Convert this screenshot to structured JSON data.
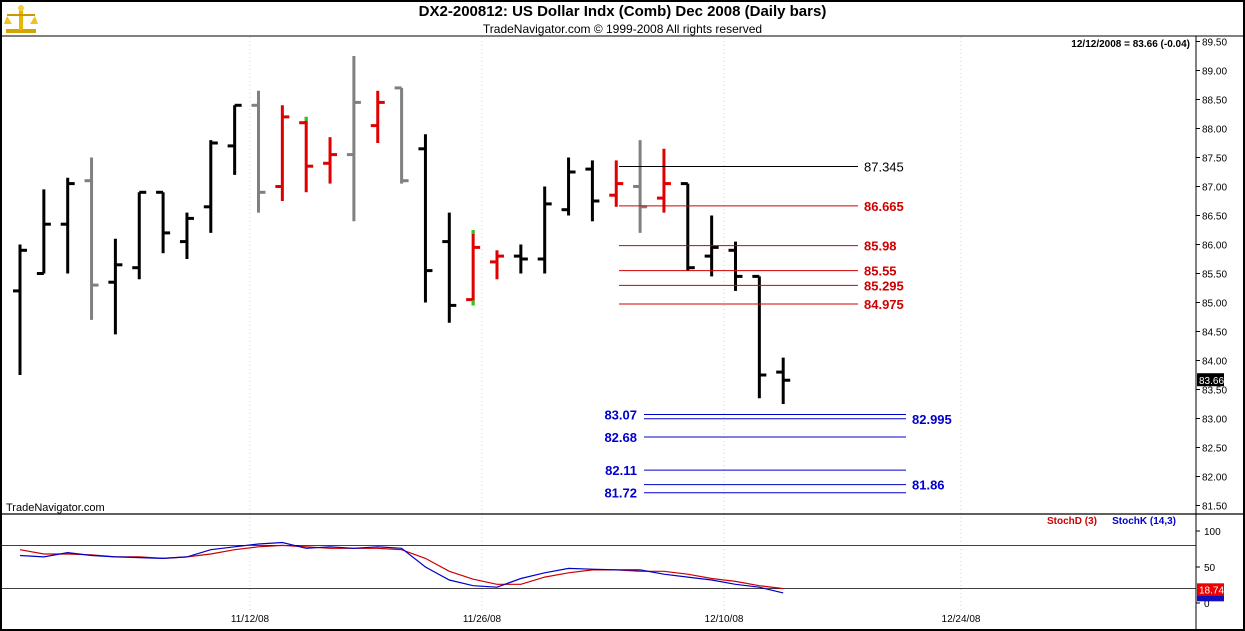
{
  "header": {
    "title": "DX2-200812:  US Dollar Indx (Comb) Dec 2008  (Daily bars)",
    "copyright": "TradeNavigator.com © 1999-2008 All rights reserved",
    "last_quote": "12/12/2008 = 83.66 (-0.04)",
    "watermark": "TradeNavigator.com",
    "last_price_tag": "83.66",
    "logo_icon": "scales-icon"
  },
  "colors": {
    "up_bar": "#e00000",
    "down_bar": "#000000",
    "neutral_bar": "#808080",
    "resistance_line": "#d00000",
    "support_line": "#0000cc",
    "stoch_d": "#cc0000",
    "stoch_k": "#0000cc",
    "highlight_tick": "#22cc22"
  },
  "chart_data": [
    {
      "type": "ohlc",
      "title": "DX2-200812:  US Dollar Indx (Comb) Dec 2008  (Daily bars)",
      "ylim": [
        81.3,
        89.6
      ],
      "yticks": [
        "89.50",
        "89.00",
        "88.50",
        "88.00",
        "87.50",
        "87.00",
        "86.50",
        "86.00",
        "85.50",
        "85.00",
        "84.50",
        "84.00",
        "83.50",
        "83.00",
        "82.50",
        "82.00",
        "81.50"
      ],
      "xticks": [
        "11/12/08",
        "11/26/08",
        "12/10/08",
        "12/24/08"
      ],
      "bars": [
        {
          "h": 86.0,
          "l": 83.75,
          "o": 85.2,
          "c": 85.9,
          "col": "black"
        },
        {
          "h": 86.95,
          "l": 85.5,
          "o": 85.5,
          "c": 86.35,
          "col": "black"
        },
        {
          "h": 87.15,
          "l": 85.5,
          "o": 86.35,
          "c": 87.05,
          "col": "black"
        },
        {
          "h": 87.5,
          "l": 84.7,
          "o": 87.1,
          "c": 85.3,
          "col": "gray"
        },
        {
          "h": 86.1,
          "l": 84.45,
          "o": 85.35,
          "c": 85.65,
          "col": "black"
        },
        {
          "h": 86.9,
          "l": 85.4,
          "o": 85.6,
          "c": 86.9,
          "col": "black"
        },
        {
          "h": 86.9,
          "l": 85.85,
          "o": 86.9,
          "c": 86.2,
          "col": "black"
        },
        {
          "h": 86.55,
          "l": 85.75,
          "o": 86.05,
          "c": 86.45,
          "col": "black"
        },
        {
          "h": 87.8,
          "l": 86.2,
          "o": 86.65,
          "c": 87.75,
          "col": "black"
        },
        {
          "h": 88.4,
          "l": 87.2,
          "o": 87.7,
          "c": 88.4,
          "col": "black"
        },
        {
          "h": 88.65,
          "l": 86.55,
          "o": 88.4,
          "c": 86.9,
          "col": "gray"
        },
        {
          "h": 88.4,
          "l": 86.75,
          "o": 87.0,
          "c": 88.2,
          "col": "red"
        },
        {
          "h": 88.2,
          "l": 86.9,
          "o": 88.1,
          "c": 87.35,
          "col": "red",
          "mark_high": true
        },
        {
          "h": 87.85,
          "l": 87.05,
          "o": 87.4,
          "c": 87.55,
          "col": "red"
        },
        {
          "h": 89.25,
          "l": 86.4,
          "o": 87.55,
          "c": 88.45,
          "col": "gray"
        },
        {
          "h": 88.65,
          "l": 87.75,
          "o": 88.05,
          "c": 88.45,
          "col": "red"
        },
        {
          "h": 88.7,
          "l": 87.05,
          "o": 88.7,
          "c": 87.1,
          "col": "gray"
        },
        {
          "h": 87.9,
          "l": 85.0,
          "o": 87.65,
          "c": 85.55,
          "col": "black"
        },
        {
          "h": 86.55,
          "l": 84.65,
          "o": 86.05,
          "c": 84.95,
          "col": "black"
        },
        {
          "h": 86.25,
          "l": 84.95,
          "o": 85.05,
          "c": 85.95,
          "col": "red",
          "mark_low": true,
          "mark_high": true
        },
        {
          "h": 85.9,
          "l": 85.4,
          "o": 85.7,
          "c": 85.8,
          "col": "red"
        },
        {
          "h": 86.0,
          "l": 85.5,
          "o": 85.8,
          "c": 85.75,
          "col": "black"
        },
        {
          "h": 87.0,
          "l": 85.5,
          "o": 85.75,
          "c": 86.7,
          "col": "black"
        },
        {
          "h": 87.5,
          "l": 86.5,
          "o": 86.6,
          "c": 87.25,
          "col": "black"
        },
        {
          "h": 87.45,
          "l": 86.4,
          "o": 87.3,
          "c": 86.75,
          "col": "black"
        },
        {
          "h": 87.45,
          "l": 86.65,
          "o": 86.85,
          "c": 87.05,
          "col": "red"
        },
        {
          "h": 87.8,
          "l": 86.2,
          "o": 87.0,
          "c": 86.65,
          "col": "gray"
        },
        {
          "h": 87.65,
          "l": 86.55,
          "o": 86.8,
          "c": 87.05,
          "col": "red"
        },
        {
          "h": 87.05,
          "l": 85.55,
          "o": 87.05,
          "c": 85.6,
          "col": "black"
        },
        {
          "h": 86.5,
          "l": 85.45,
          "o": 85.8,
          "c": 85.95,
          "col": "black"
        },
        {
          "h": 86.05,
          "l": 85.2,
          "o": 85.9,
          "c": 85.45,
          "col": "black"
        },
        {
          "h": 85.45,
          "l": 83.35,
          "o": 85.45,
          "c": 83.75,
          "col": "black"
        },
        {
          "h": 84.05,
          "l": 83.25,
          "o": 83.8,
          "c": 83.66,
          "col": "black"
        }
      ],
      "levels": [
        {
          "value": 87.345,
          "label": "87.345",
          "color": "black"
        },
        {
          "value": 86.665,
          "label": "86.665",
          "color": "red"
        },
        {
          "value": 85.98,
          "label": "85.98",
          "color": "red"
        },
        {
          "value": 85.55,
          "label": "85.55",
          "color": "red"
        },
        {
          "value": 85.295,
          "label": "85.295",
          "color": "red"
        },
        {
          "value": 84.975,
          "label": "84.975",
          "color": "red"
        },
        {
          "value": 83.07,
          "label": "83.07",
          "color": "blue",
          "side": "left"
        },
        {
          "value": 82.995,
          "label": "82.995",
          "color": "blue",
          "side": "right"
        },
        {
          "value": 82.68,
          "label": "82.68",
          "color": "blue",
          "side": "left"
        },
        {
          "value": 82.11,
          "label": "82.11",
          "color": "blue",
          "side": "left"
        },
        {
          "value": 81.86,
          "label": "81.86",
          "color": "blue",
          "side": "right"
        },
        {
          "value": 81.72,
          "label": "81.72",
          "color": "blue",
          "side": "left"
        }
      ]
    },
    {
      "type": "line",
      "ylim": [
        0,
        100
      ],
      "yticks": [
        "100",
        "50",
        "0"
      ],
      "hlines": [
        80,
        20
      ],
      "last_value": "18.74",
      "series": [
        {
          "name": "StochD (3)",
          "color": "#cc0000",
          "values": [
            74,
            68,
            68,
            67,
            64,
            64,
            62,
            64,
            68,
            74,
            78,
            80,
            78,
            76,
            76,
            76,
            74,
            62,
            44,
            33,
            26,
            26,
            36,
            42,
            46,
            46,
            44,
            44,
            40,
            34,
            30,
            24,
            20
          ]
        },
        {
          "name": "StochK (14,3)",
          "color": "#0000cc",
          "values": [
            66,
            64,
            70,
            66,
            64,
            63,
            62,
            64,
            74,
            78,
            82,
            84,
            76,
            78,
            76,
            78,
            76,
            50,
            32,
            24,
            22,
            34,
            42,
            48,
            47,
            46,
            46,
            40,
            36,
            32,
            26,
            22,
            14
          ]
        }
      ]
    }
  ]
}
